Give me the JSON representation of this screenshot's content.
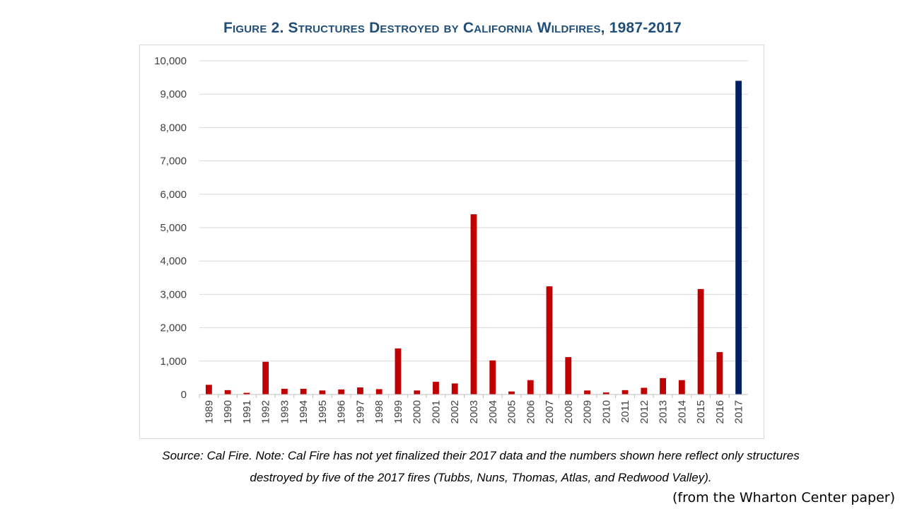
{
  "chart_data": {
    "type": "bar",
    "title": "Figure 2. Structures Destroyed by California Wildfires, 1987-2017",
    "xlabel": "",
    "ylabel": "",
    "ylim": [
      0,
      10000
    ],
    "yticks": [
      "0",
      "1,000",
      "2,000",
      "3,000",
      "4,000",
      "5,000",
      "6,000",
      "7,000",
      "8,000",
      "9,000",
      "10,000"
    ],
    "grid": true,
    "categories": [
      "1989",
      "1990",
      "1991",
      "1992",
      "1993",
      "1994",
      "1995",
      "1996",
      "1997",
      "1998",
      "1999",
      "2000",
      "2001",
      "2002",
      "2003",
      "2004",
      "2005",
      "2006",
      "2007",
      "2008",
      "2009",
      "2010",
      "2011",
      "2012",
      "2013",
      "2014",
      "2015",
      "2016",
      "2017"
    ],
    "values": [
      290,
      130,
      50,
      980,
      170,
      170,
      120,
      150,
      210,
      160,
      1380,
      120,
      380,
      330,
      5400,
      1020,
      90,
      430,
      3240,
      1120,
      120,
      60,
      130,
      200,
      490,
      430,
      3160,
      1270,
      9400
    ],
    "colors": {
      "default": "#c00000",
      "highlight": "#002060",
      "highlight_category": "2017",
      "title": "#1f4e79",
      "gridline": "#d9d9d9",
      "axis": "#bfbfbf"
    }
  },
  "caption": {
    "source_line1": "Source: Cal Fire. Note: Cal Fire has not yet finalized their 2017 data and the numbers shown here reflect only structures",
    "source_line2": "destroyed by five of the 2017 fires (Tubbs, Nuns, Thomas, Atlas, and Redwood Valley).",
    "attribution": "(from the Wharton Center paper)"
  }
}
